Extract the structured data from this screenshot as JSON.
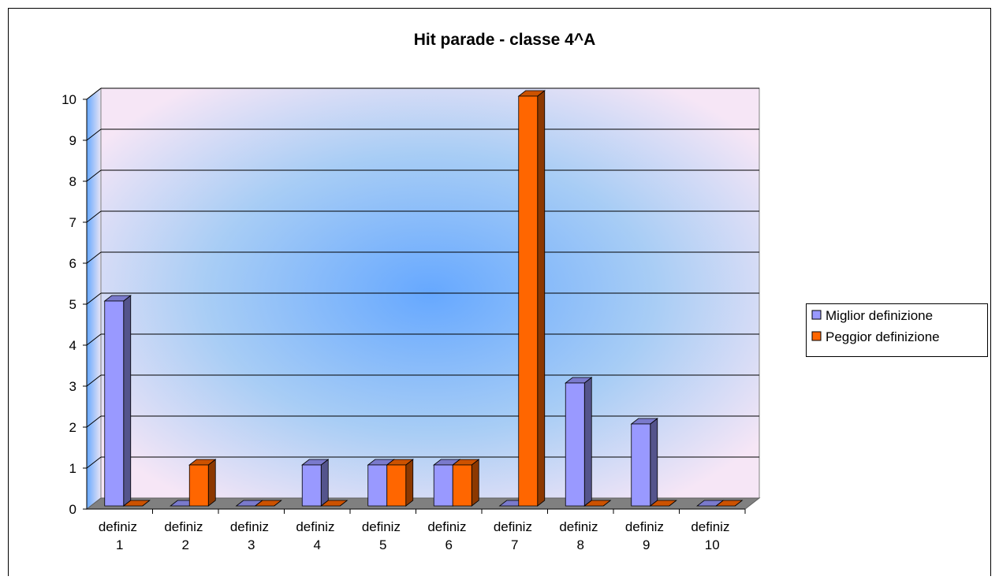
{
  "chart_data": {
    "type": "bar3d",
    "title": "Hit parade - classe 4^A",
    "categories": [
      "definiz 1",
      "definiz 2",
      "definiz 3",
      "definiz 4",
      "definiz 5",
      "definiz 6",
      "definiz 7",
      "definiz 8",
      "definiz 9",
      "definiz 10"
    ],
    "series": [
      {
        "name": "Miglior definizione",
        "color": "#9999ff",
        "values": [
          5,
          0,
          0,
          1,
          1,
          1,
          0,
          3,
          2,
          0
        ]
      },
      {
        "name": "Peggior definizione",
        "color": "#ff6600",
        "values": [
          0,
          1,
          0,
          0,
          1,
          1,
          10,
          0,
          0,
          0
        ]
      }
    ],
    "ylim": [
      0,
      10
    ],
    "yticks": [
      0,
      1,
      2,
      3,
      4,
      5,
      6,
      7,
      8,
      9,
      10
    ],
    "grid": true,
    "legend": "right"
  }
}
